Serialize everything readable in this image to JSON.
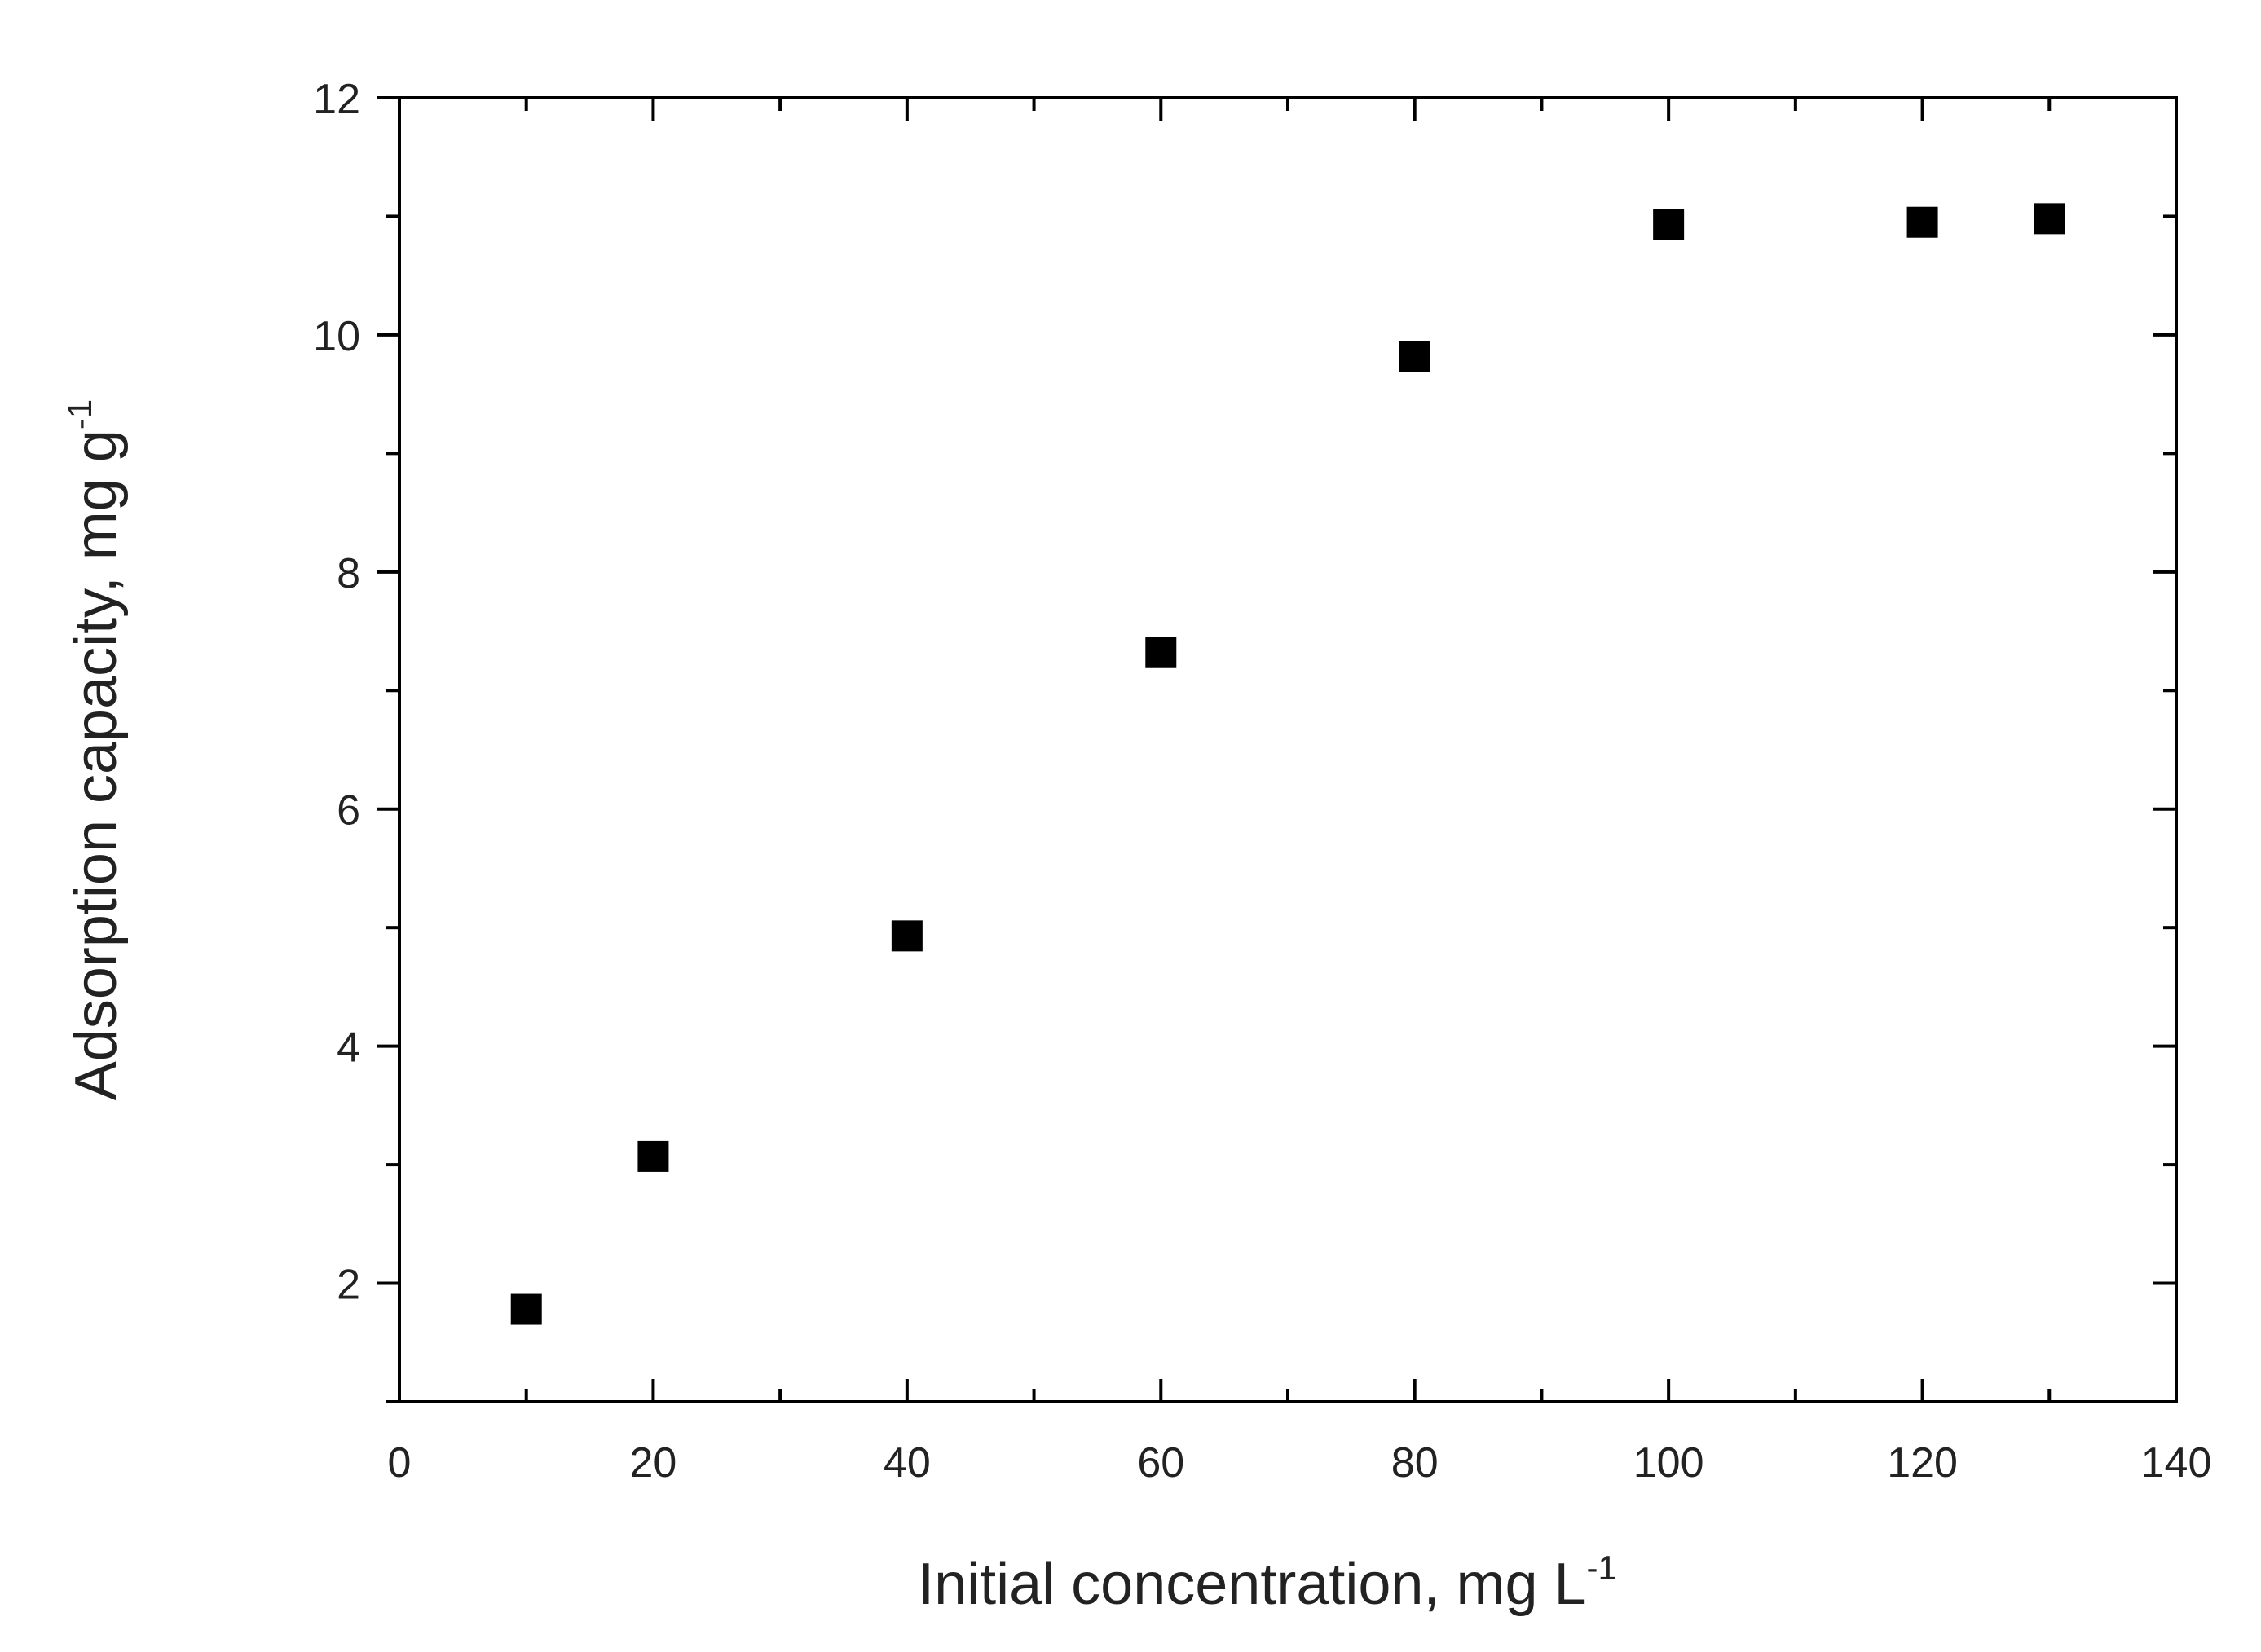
{
  "chart_data": {
    "type": "scatter",
    "xlabel": "Initial concentration, mg L",
    "xlabel_sup": "-1",
    "ylabel": "Adsorption capacity, mg g",
    "ylabel_sup": "-1",
    "xlim": [
      0,
      140
    ],
    "ylim": [
      1,
      12
    ],
    "xticks": [
      0,
      20,
      40,
      60,
      80,
      100,
      120,
      140
    ],
    "yticks": [
      2,
      4,
      6,
      8,
      10,
      12
    ],
    "grid": false,
    "marker": "square",
    "marker_color": "#000000",
    "series": [
      {
        "x": [
          10,
          20,
          40,
          60,
          80,
          100,
          120,
          130
        ],
        "y": [
          1.78,
          3.07,
          4.93,
          7.32,
          9.82,
          10.93,
          10.95,
          10.98
        ]
      }
    ]
  }
}
